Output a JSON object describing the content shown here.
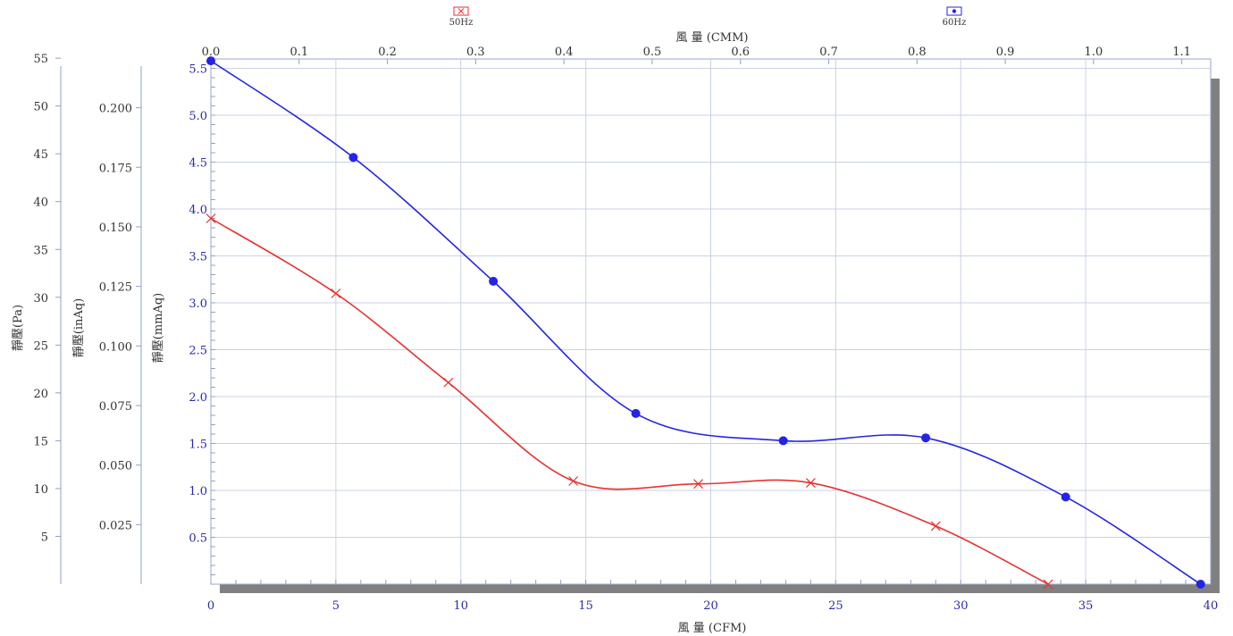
{
  "chart_data": {
    "type": "line",
    "x_bottom_label": "風 量 (CFM)",
    "x_top_label": "風 量 (CMM)",
    "y_labels": [
      "靜壓(Pa)",
      "靜壓(inAq)",
      "靜壓(mmAq)"
    ],
    "x_range_cfm": [
      0,
      40
    ],
    "x_ticks_cfm": [
      0,
      5,
      10,
      15,
      20,
      25,
      30,
      35,
      40
    ],
    "x_ticks_cmm": [
      "0.0",
      "0.1",
      "0.2",
      "0.3",
      "0.4",
      "0.5",
      "0.6",
      "0.7",
      "0.8",
      "0.9",
      "1.0",
      "1.1"
    ],
    "y_range_mmaq": [
      0,
      5.6
    ],
    "y_ticks_mmaq": [
      "0.5",
      "1.0",
      "1.5",
      "2.0",
      "2.5",
      "3.0",
      "3.5",
      "4.0",
      "4.5",
      "5.0",
      "5.5"
    ],
    "y_ticks_inaq": [
      "0.025",
      "0.050",
      "0.075",
      "0.100",
      "0.125",
      "0.150",
      "0.175",
      "0.200"
    ],
    "y_ticks_pa": [
      "5",
      "10",
      "15",
      "20",
      "25",
      "30",
      "35",
      "40",
      "45",
      "50",
      "55"
    ],
    "legend": [
      {
        "name": "50Hz",
        "color": "#e8312f",
        "marker": "x"
      },
      {
        "name": "60Hz",
        "color": "#2424e6",
        "marker": "dot"
      }
    ],
    "series": [
      {
        "name": "50Hz",
        "color": "#e8312f",
        "marker": "x",
        "points": [
          [
            0,
            3.9
          ],
          [
            5,
            3.1
          ],
          [
            9.5,
            2.15
          ],
          [
            14.5,
            1.1
          ],
          [
            19.5,
            1.07
          ],
          [
            24,
            1.08
          ],
          [
            29,
            0.62
          ],
          [
            33.5,
            0.0
          ]
        ]
      },
      {
        "name": "60Hz",
        "color": "#2424e6",
        "marker": "dot",
        "points": [
          [
            0,
            5.58
          ],
          [
            5.7,
            4.55
          ],
          [
            11.3,
            3.23
          ],
          [
            17,
            1.82
          ],
          [
            22.9,
            1.53
          ],
          [
            28.6,
            1.56
          ],
          [
            34.2,
            0.93
          ],
          [
            39.6,
            0.0
          ]
        ]
      }
    ]
  }
}
